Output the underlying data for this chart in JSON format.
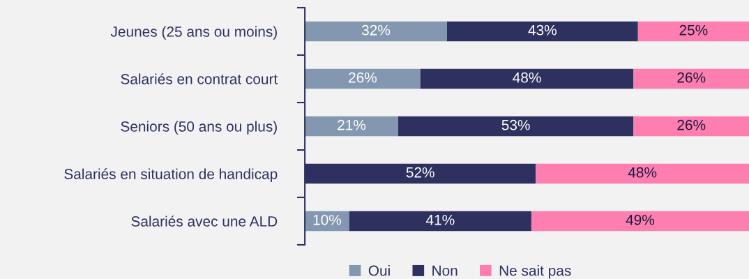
{
  "chart_data": {
    "type": "bar",
    "orientation": "horizontal",
    "stacked": true,
    "categories": [
      "Jeunes (25 ans ou moins)",
      "Salariés en contrat court",
      "Seniors (50 ans ou plus)",
      "Salariés en situation de handicap",
      "Salariés avec une ALD"
    ],
    "series": [
      {
        "name": "Oui",
        "color": "#8497b0",
        "values": [
          32,
          26,
          21,
          0,
          10
        ],
        "value_labels": [
          "32%",
          "26%",
          "21%",
          null,
          "10%"
        ]
      },
      {
        "name": "Non",
        "color": "#2e3160",
        "values": [
          43,
          48,
          53,
          52,
          41
        ],
        "value_labels": [
          "43%",
          "48%",
          "53%",
          "52%",
          "41%"
        ]
      },
      {
        "name": "Ne sait pas",
        "color": "#ff7eb0",
        "values": [
          25,
          26,
          26,
          48,
          49
        ],
        "value_labels": [
          "25%",
          "26%",
          "26%",
          "48%",
          "49%"
        ]
      }
    ],
    "legend": "bottom"
  }
}
